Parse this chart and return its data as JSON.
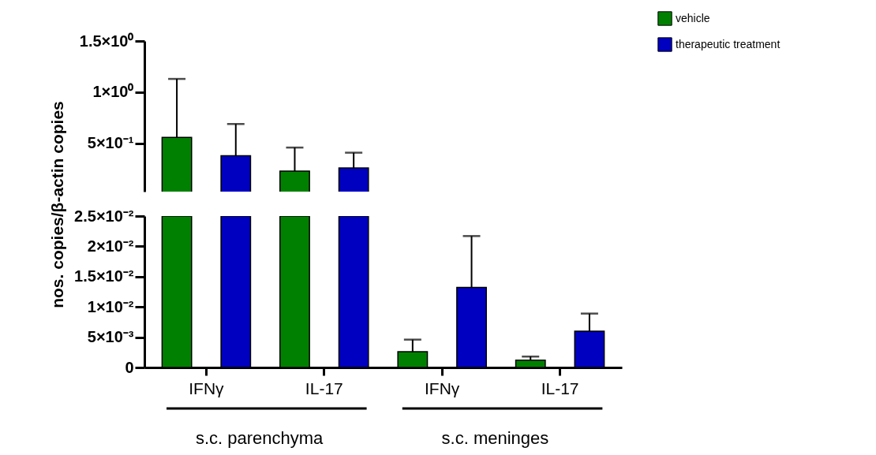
{
  "chart_data": [
    {
      "type": "bar",
      "categories": [
        null,
        null,
        null,
        null
      ],
      "ylim": [
        0.03,
        1.5
      ],
      "yticks": [
        {
          "value": 0.5,
          "label": "5×10⁻¹"
        },
        {
          "value": 1,
          "label": "1×10⁰"
        },
        {
          "value": 1.5,
          "label": "1.5×10⁰"
        }
      ],
      "tick_labels": "y",
      "legend": "top right",
      "grid": false,
      "series": [
        {
          "name": "vehicle",
          "color": "#008000",
          "values": [
            0.56,
            0.23,
            null,
            null
          ],
          "errors": [
            [
              0.56,
              1.13
            ],
            [
              0.23,
              0.46
            ],
            null,
            null
          ]
        },
        {
          "name": "therapeutic treatment",
          "color": "#0000c0",
          "values": [
            0.38,
            0.26,
            null,
            null
          ],
          "errors": [
            [
              0.38,
              0.69
            ],
            [
              0.26,
              0.41
            ],
            null,
            null
          ]
        }
      ]
    },
    {
      "type": "bar",
      "categories": [
        "IFNγ",
        "IL-17",
        "IFNγ",
        "IL-17"
      ],
      "ylabel": "nos. copies/β-actin copies",
      "ylim": [
        0,
        0.025
      ],
      "yticks": [
        0,
        {
          "value": 0.005,
          "label": "5×10⁻³"
        },
        {
          "value": 0.01,
          "label": "1×10⁻²"
        },
        {
          "value": 0.015,
          "label": "1.5×10⁻²"
        },
        {
          "value": 0.02,
          "label": "2×10⁻²"
        },
        {
          "value": 0.025,
          "label": "2.5×10⁻²"
        }
      ],
      "grid": false,
      "annotations": [
        "s.c. parenchyma",
        "s.c. meninges"
      ],
      "series": [
        {
          "name": "vehicle",
          "color": "#008000",
          "values": [
            0.025,
            0.025,
            0.0026,
            0.0012
          ],
          "errors": [
            null,
            null,
            [
              0.0026,
              0.0046
            ],
            [
              0.0012,
              0.0018
            ]
          ]
        },
        {
          "name": "therapeutic treatment",
          "color": "#0000c0",
          "values": [
            0.025,
            0.025,
            0.0132,
            0.006
          ],
          "errors": [
            null,
            null,
            [
              0.0132,
              0.0217
            ],
            [
              0.006,
              0.0089
            ]
          ]
        }
      ]
    }
  ]
}
